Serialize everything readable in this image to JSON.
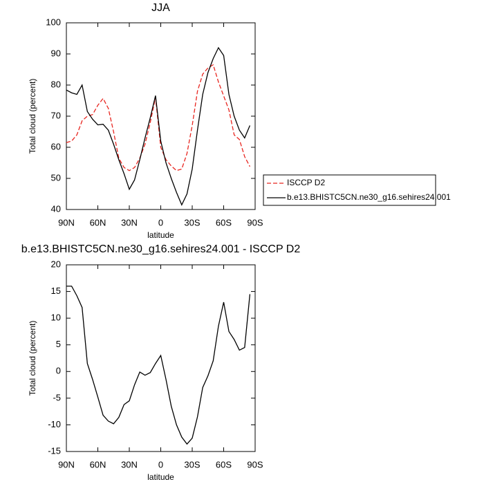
{
  "chart_data": [
    {
      "type": "line",
      "title": "JJA",
      "xlabel": "latitude",
      "ylabel": "Total cloud (percent)",
      "x": [
        90,
        85,
        80,
        75,
        70,
        65,
        60,
        55,
        50,
        45,
        40,
        35,
        30,
        25,
        20,
        15,
        10,
        5,
        0,
        -5,
        -10,
        -15,
        -20,
        -25,
        -30,
        -35,
        -40,
        -45,
        -50,
        -55,
        -60,
        -65,
        -70,
        -75,
        -80,
        -85
      ],
      "xlim": [
        90,
        -90
      ],
      "xticks": [
        {
          "value": 90,
          "label": "90N"
        },
        {
          "value": 60,
          "label": "60N"
        },
        {
          "value": 30,
          "label": "30N"
        },
        0,
        {
          "value": -30,
          "label": "30S"
        },
        {
          "value": -60,
          "label": "60S"
        },
        {
          "value": -90,
          "label": "90S"
        }
      ],
      "ylim": [
        40,
        100
      ],
      "yticks": [
        40,
        50,
        60,
        70,
        80,
        90,
        100
      ],
      "legend": "right",
      "series": [
        {
          "name": "ISCCP D2",
          "color": "#e8251f",
          "dashed": true,
          "values": [
            61.5,
            62,
            64,
            68.5,
            70,
            70.5,
            73.5,
            75.7,
            72.5,
            65,
            56.5,
            53.5,
            52.5,
            53.5,
            56.5,
            61,
            68,
            76,
            60,
            56,
            54,
            52.5,
            53,
            58,
            67,
            78,
            83.5,
            85.5,
            86.5,
            81,
            76.5,
            72,
            64,
            62.5,
            57,
            53.8
          ]
        },
        {
          "name": "b.e13.BHISTC5CN.ne30_g16.sehires24.001",
          "color": "#000000",
          "dashed": false,
          "values": [
            78.4,
            77.5,
            77,
            80,
            71.5,
            69,
            67.2,
            67.4,
            65.5,
            61,
            56,
            51.5,
            46.5,
            49.5,
            56,
            63,
            69.5,
            76.6,
            62,
            55,
            50,
            45.5,
            41.5,
            45,
            53,
            65.5,
            77,
            84,
            88.5,
            92,
            89.5,
            77,
            70,
            65.5,
            63,
            67
          ]
        }
      ]
    },
    {
      "type": "line",
      "title": "b.e13.BHISTC5CN.ne30_g16.sehires24.001 - ISCCP D2",
      "xlabel": "latitude",
      "ylabel": "Total cloud (percent)",
      "x": [
        90,
        85,
        80,
        75,
        70,
        65,
        60,
        55,
        50,
        45,
        40,
        35,
        30,
        25,
        20,
        15,
        10,
        5,
        0,
        -5,
        -10,
        -15,
        -20,
        -25,
        -30,
        -35,
        -40,
        -45,
        -50,
        -55,
        -60,
        -65,
        -70,
        -75,
        -80,
        -85
      ],
      "xlim": [
        90,
        -90
      ],
      "xticks": [
        {
          "value": 90,
          "label": "90N"
        },
        {
          "value": 60,
          "label": "60N"
        },
        {
          "value": 30,
          "label": "30N"
        },
        0,
        {
          "value": -30,
          "label": "30S"
        },
        {
          "value": -60,
          "label": "60S"
        },
        {
          "value": -90,
          "label": "90S"
        }
      ],
      "ylim": [
        -15,
        20
      ],
      "yticks": [
        -15,
        -10,
        -5,
        0,
        5,
        10,
        15,
        20
      ],
      "series": [
        {
          "color": "#000000",
          "dashed": false,
          "values": [
            16,
            16,
            14.2,
            12,
            1.5,
            -1.5,
            -4.8,
            -8.2,
            -9.3,
            -9.8,
            -8.6,
            -6.2,
            -5.5,
            -2.5,
            -0.1,
            -0.7,
            -0.2,
            1.5,
            3,
            -1.5,
            -6.5,
            -10,
            -12.3,
            -13.6,
            -12.5,
            -8.5,
            -3,
            -0.8,
            2,
            8.5,
            13,
            7.5,
            6,
            4,
            4.5,
            14.5
          ]
        }
      ]
    }
  ]
}
